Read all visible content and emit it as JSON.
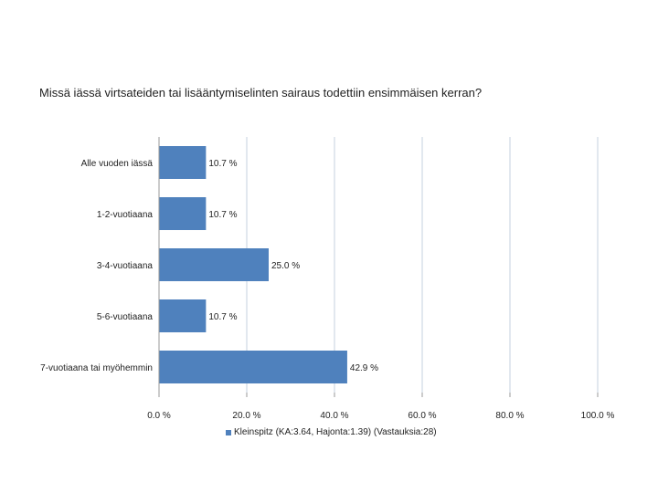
{
  "page": {
    "title": "Missä iässä virtsateiden tai lisääntymiselinten sairaus todettiin ensimmäisen kerran?"
  },
  "colors": {
    "bar": "#4f81bd",
    "grid": "#d9e0ea",
    "axis": "#9a9a9a"
  },
  "chart_data": {
    "type": "bar",
    "orientation": "horizontal",
    "title": "Missä iässä virtsateiden tai lisääntymiselinten sairaus todettiin ensimmäisen kerran?",
    "categories": [
      "Alle vuoden iässä",
      "1-2-vuotiaana",
      "3-4-vuotiaana",
      "5-6-vuotiaana",
      "7-vuotiaana tai myöhemmin"
    ],
    "series": [
      {
        "name": "Kleinspitz (KA:3.64, Hajonta:1.39) (Vastauksia:28)",
        "values": [
          10.7,
          10.7,
          25.0,
          10.7,
          42.9
        ],
        "labels": [
          "10.7 %",
          "10.7 %",
          "25.0 %",
          "10.7 %",
          "42.9 %"
        ]
      }
    ],
    "xlim": [
      0,
      100
    ],
    "xticks": [
      0,
      20,
      40,
      60,
      80,
      100
    ],
    "xtick_labels": [
      "0.0 %",
      "20.0 %",
      "40.0 %",
      "60.0 %",
      "80.0 %",
      "100.0 %"
    ],
    "grid": true,
    "legend_position": "bottom"
  }
}
